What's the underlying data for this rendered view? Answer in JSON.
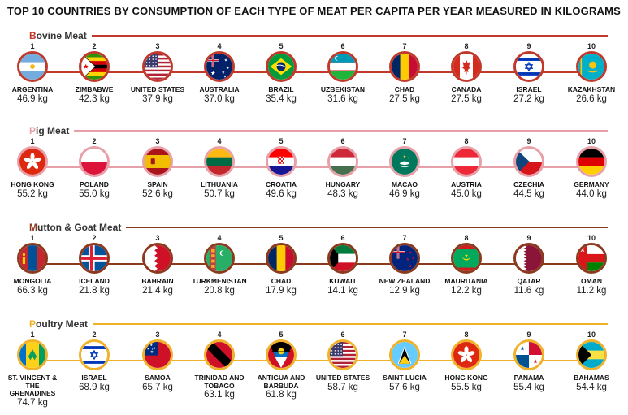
{
  "title": "TOP 10 COUNTRIES BY CONSUMPTION OF EACH TYPE OF MEAT PER CAPITA PER YEAR MEASURED IN KILOGRAMS",
  "colors": {
    "bovine": "#c0392b",
    "pig": "#e8a0a8",
    "mutton": "#8b3a1e",
    "poultry": "#f0b22a"
  },
  "chart_data": {
    "type": "table",
    "title": "TOP 10 COUNTRIES BY CONSUMPTION OF EACH TYPE OF MEAT PER CAPITA PER YEAR MEASURED IN KILOGRAMS",
    "sections": [
      {
        "initial": "B",
        "rest": "ovine Meat",
        "color_key": "bovine",
        "items": [
          {
            "rank": "1",
            "country": "ARGENTINA",
            "value": "46.9 kg",
            "flag": "argentina-flag-icon"
          },
          {
            "rank": "2",
            "country": "ZIMBABWE",
            "value": "42.3 kg",
            "flag": "zimbabwe-flag-icon"
          },
          {
            "rank": "3",
            "country": "UNITED STATES",
            "value": "37.9 kg",
            "flag": "usa-flag-icon"
          },
          {
            "rank": "4",
            "country": "AUSTRALIA",
            "value": "37.0 kg",
            "flag": "australia-flag-icon"
          },
          {
            "rank": "5",
            "country": "BRAZIL",
            "value": "35.4 kg",
            "flag": "brazil-flag-icon"
          },
          {
            "rank": "6",
            "country": "UZBEKISTAN",
            "value": "31.6 kg",
            "flag": "uzbekistan-flag-icon"
          },
          {
            "rank": "7",
            "country": "CHAD",
            "value": "27.5 kg",
            "flag": "chad-flag-icon"
          },
          {
            "rank": "8",
            "country": "CANADA",
            "value": "27.5 kg",
            "flag": "canada-flag-icon"
          },
          {
            "rank": "9",
            "country": "ISRAEL",
            "value": "27.2 kg",
            "flag": "israel-flag-icon"
          },
          {
            "rank": "10",
            "country": "KAZAKHSTAN",
            "value": "26.6 kg",
            "flag": "kazakhstan-flag-icon"
          }
        ]
      },
      {
        "initial": "P",
        "rest": "ig Meat",
        "color_key": "pig",
        "items": [
          {
            "rank": "1",
            "country": "HONG KONG",
            "value": "55.2 kg",
            "flag": "hongkong-flag-icon"
          },
          {
            "rank": "2",
            "country": "POLAND",
            "value": "55.0 kg",
            "flag": "poland-flag-icon"
          },
          {
            "rank": "3",
            "country": "SPAIN",
            "value": "52.6 kg",
            "flag": "spain-flag-icon"
          },
          {
            "rank": "4",
            "country": "LITHUANIA",
            "value": "50.7 kg",
            "flag": "lithuania-flag-icon"
          },
          {
            "rank": "5",
            "country": "CROATIA",
            "value": "49.6 kg",
            "flag": "croatia-flag-icon"
          },
          {
            "rank": "6",
            "country": "HUNGARY",
            "value": "48.3 kg",
            "flag": "hungary-flag-icon"
          },
          {
            "rank": "7",
            "country": "MACAO",
            "value": "46.9 kg",
            "flag": "macao-flag-icon"
          },
          {
            "rank": "8",
            "country": "AUSTRIA",
            "value": "45.0 kg",
            "flag": "austria-flag-icon"
          },
          {
            "rank": "9",
            "country": "CZECHIA",
            "value": "44.5 kg",
            "flag": "czechia-flag-icon"
          },
          {
            "rank": "10",
            "country": "GERMANY",
            "value": "44.0 kg",
            "flag": "germany-flag-icon"
          }
        ]
      },
      {
        "initial": "M",
        "rest": "utton & Goat Meat",
        "color_key": "mutton",
        "items": [
          {
            "rank": "1",
            "country": "MONGOLIA",
            "value": "66.3 kg",
            "flag": "mongolia-flag-icon"
          },
          {
            "rank": "2",
            "country": "ICELAND",
            "value": "21.8 kg",
            "flag": "iceland-flag-icon"
          },
          {
            "rank": "3",
            "country": "BAHRAIN",
            "value": "21.4 kg",
            "flag": "bahrain-flag-icon"
          },
          {
            "rank": "4",
            "country": "TURKMENISTAN",
            "value": "20.8 kg",
            "flag": "turkmenistan-flag-icon"
          },
          {
            "rank": "5",
            "country": "CHAD",
            "value": "17.9 kg",
            "flag": "chad-flag-icon"
          },
          {
            "rank": "6",
            "country": "KUWAIT",
            "value": "14.1 kg",
            "flag": "kuwait-flag-icon"
          },
          {
            "rank": "7",
            "country": "NEW ZEALAND",
            "value": "12.9 kg",
            "flag": "newzealand-flag-icon"
          },
          {
            "rank": "8",
            "country": "MAURITANIA",
            "value": "12.2 kg",
            "flag": "mauritania-flag-icon"
          },
          {
            "rank": "9",
            "country": "QATAR",
            "value": "11.6 kg",
            "flag": "qatar-flag-icon"
          },
          {
            "rank": "10",
            "country": "OMAN",
            "value": "11.2 kg",
            "flag": "oman-flag-icon"
          }
        ]
      },
      {
        "initial": "P",
        "rest": "oultry Meat",
        "color_key": "poultry",
        "items": [
          {
            "rank": "1",
            "country": "ST. VINCENT & THE GRENADINES",
            "value": "74.7 kg",
            "flag": "stvincent-flag-icon"
          },
          {
            "rank": "2",
            "country": "ISRAEL",
            "value": "68.9 kg",
            "flag": "israel-flag-icon"
          },
          {
            "rank": "3",
            "country": "SAMOA",
            "value": "65.7 kg",
            "flag": "samoa-flag-icon"
          },
          {
            "rank": "4",
            "country": "TRINIDAD AND TOBAGO",
            "value": "63.1 kg",
            "flag": "trinidad-flag-icon"
          },
          {
            "rank": "5",
            "country": "ANTIGUA AND BARBUDA",
            "value": "61.8 kg",
            "flag": "antigua-flag-icon"
          },
          {
            "rank": "6",
            "country": "UNITED STATES",
            "value": "58.7 kg",
            "flag": "usa-flag-icon"
          },
          {
            "rank": "7",
            "country": "SAINT LUCIA",
            "value": "57.6 kg",
            "flag": "stlucia-flag-icon"
          },
          {
            "rank": "8",
            "country": "HONG KONG",
            "value": "55.5 kg",
            "flag": "hongkong-flag-icon"
          },
          {
            "rank": "9",
            "country": "PANAMA",
            "value": "55.4 kg",
            "flag": "panama-flag-icon"
          },
          {
            "rank": "10",
            "country": "BAHAMAS",
            "value": "54.4 kg",
            "flag": "bahamas-flag-icon"
          }
        ]
      }
    ]
  }
}
